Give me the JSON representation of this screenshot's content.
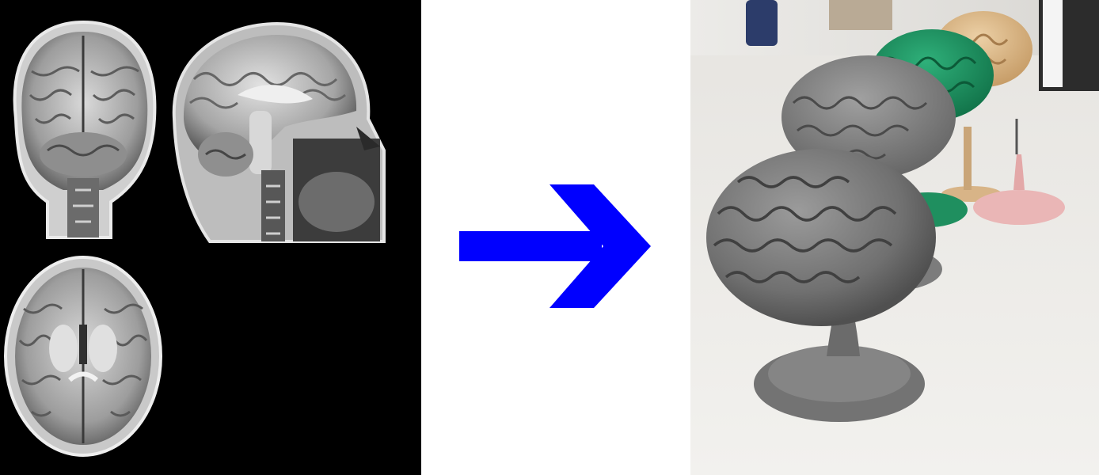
{
  "figure": {
    "left_panel": {
      "content": "mri-scans",
      "views": [
        "coronal",
        "sagittal",
        "axial"
      ]
    },
    "middle_panel": {
      "content": "right-arrow",
      "arrow_color": "#0000ff"
    },
    "right_panel": {
      "content": "3d-printed-brain-models",
      "model_colors": [
        "#8a8a8a",
        "#1f8f5f",
        "#d8b487"
      ],
      "stand_colors": [
        "#7c7c7c",
        "#1f8f5f",
        "#d8b487",
        "#eab6b6"
      ]
    }
  }
}
